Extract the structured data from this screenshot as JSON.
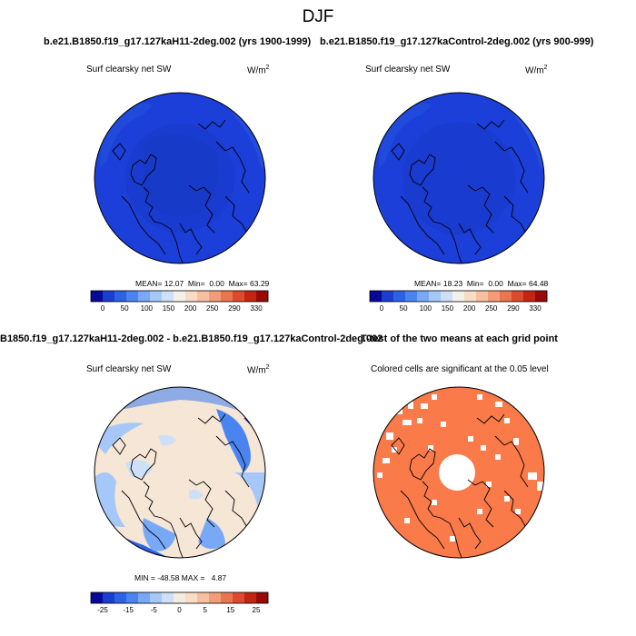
{
  "figure": {
    "title": "DJF",
    "case1_title": "b.e21.B1850.f19_g17.127kaH11-2deg.002 (yrs 1900-1999)",
    "case2_title": "b.e21.B1850.f19_g17.127kaControl-2deg.002 (yrs 900-999)",
    "diff_title": "B1850.f19_g17.127kaH11-2deg.002 - b.e21.B1850.f19_g17.127kaControl-2deg.002",
    "ttest_title": "T-test of the two means at each grid point"
  },
  "panels": {
    "p1": {
      "variable_label": "Surf clearsky net SW",
      "units": "W/m",
      "units_exp": "2",
      "mean_label": "MEAN=",
      "mean_value": "12.07",
      "min_label": "Min=",
      "min_value": "0.00",
      "max_label": "Max=",
      "max_value": "63.29"
    },
    "p2": {
      "variable_label": "Surf clearsky net SW",
      "units": "W/m",
      "units_exp": "2",
      "mean_label": "MEAN=",
      "mean_value": "18.23",
      "min_label": "Min=",
      "min_value": "0.00",
      "max_label": "Max=",
      "max_value": "64.48"
    },
    "p3": {
      "variable_label": "Surf clearsky net SW",
      "units": "W/m",
      "units_exp": "2",
      "min_label": "MIN =",
      "min_value": "-48.58",
      "max_label": "MAX =",
      "max_value": "4.87"
    },
    "p4": {
      "variable_label": "Colored cells are significant at the 0.05 level"
    }
  },
  "colorbars": {
    "abs": {
      "colors": [
        "#08089a",
        "#1a3ed0",
        "#2e62e6",
        "#4a84f0",
        "#78a8f6",
        "#a6c8f8",
        "#cde0f8",
        "#f4f0ea",
        "#f9dcc4",
        "#f6bfa0",
        "#f29c78",
        "#ea7650",
        "#de4a2e",
        "#c42412",
        "#980a06"
      ],
      "tick_labels": [
        "0",
        "50",
        "100",
        "150",
        "200",
        "250",
        "290",
        "330"
      ]
    },
    "diff": {
      "colors": [
        "#08089a",
        "#1a3ed0",
        "#2e62e6",
        "#4a84f0",
        "#78a8f6",
        "#a6c8f8",
        "#cde0f8",
        "#f4ece0",
        "#f9dcc4",
        "#f6bfa0",
        "#f29c78",
        "#ea7650",
        "#de4a2e",
        "#c42412",
        "#980a06"
      ],
      "tick_labels": [
        "-25",
        "-15",
        "-5",
        "0",
        "5",
        "15",
        "25"
      ]
    }
  },
  "map_colors": {
    "p1_base": "#1b3fd8",
    "p2_base": "#1b3fd8",
    "significant": "#fa7a4a"
  }
}
